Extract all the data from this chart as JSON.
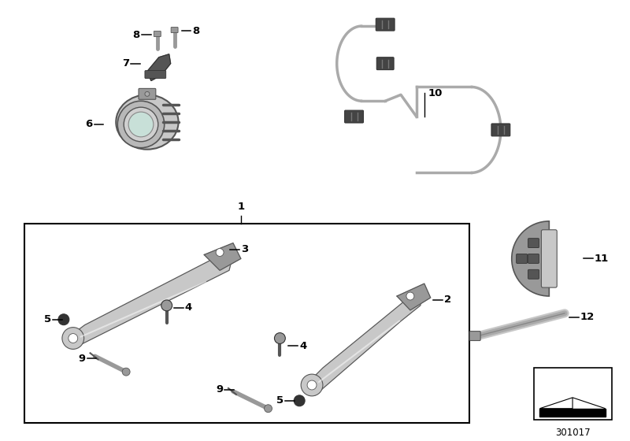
{
  "background_color": "#ffffff",
  "border_color": "#000000",
  "light_gray": "#c8c8c8",
  "mid_gray": "#999999",
  "dark_gray": "#555555",
  "very_dark": "#333333",
  "diagram_id": "301017",
  "wire_color": "#aaaaaa",
  "connector_color": "#444444"
}
